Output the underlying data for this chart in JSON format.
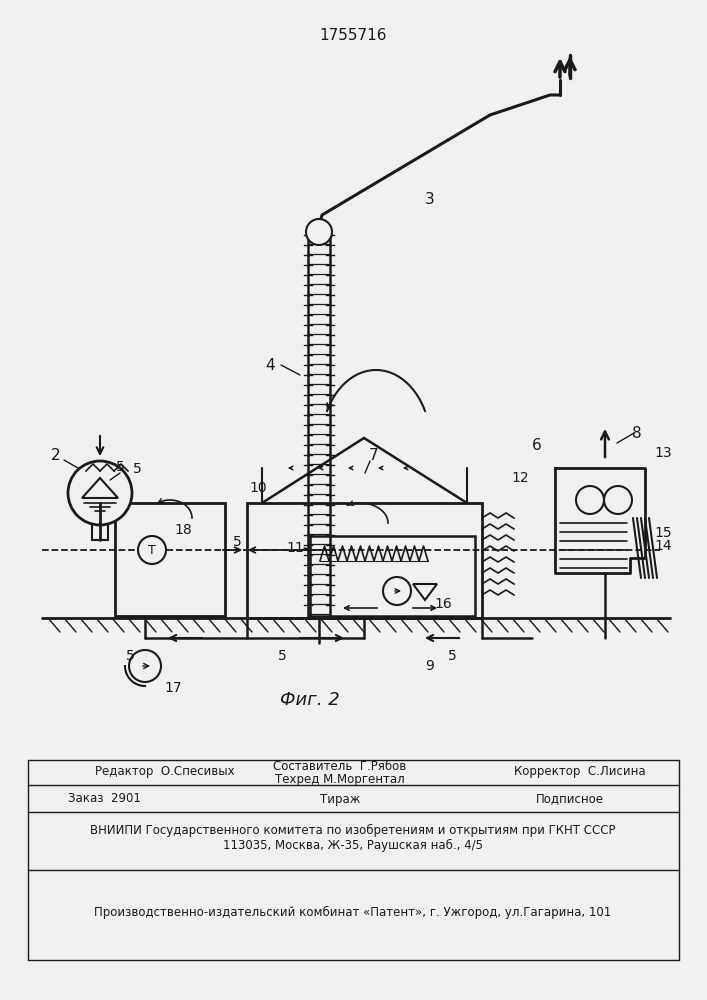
{
  "title": "1755716",
  "fig_label": "Фиг. 2",
  "bg": "#f0f0f0",
  "lc": "#1a1a1a",
  "editor1": "Редактор  О.Спесивых",
  "composer": "Составитель  Г.Рябов",
  "techred": "Техред М.Моргентал",
  "corrector": "Корректор  С.Лисина",
  "zakaz": "Заказ  2901",
  "tirazh": "Тираж",
  "podpisnoe": "Подписное",
  "vniiipi": "ВНИИПИ Государственного комитета по изобретениям и открытиям при ГКНТ СССР",
  "address": "113035, Москва, Ж-35, Раушская наб., 4/5",
  "proizv": "Производственно-издательский комбинат «Патент», г. Ужгород, ул.Гагарина, 101"
}
